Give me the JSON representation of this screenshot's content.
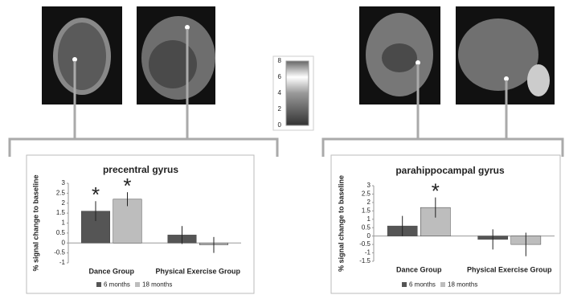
{
  "chart_data": [
    {
      "type": "bar",
      "title": "precentral gyrus",
      "y_label": "% signal change to baseline",
      "categories": [
        "Dance Group",
        "Physical Exercise Group"
      ],
      "series": [
        {
          "name": "6 months",
          "color": "#555555",
          "values": [
            1.6,
            0.4
          ],
          "errors": [
            0.5,
            0.45
          ],
          "significance": [
            "*",
            null
          ]
        },
        {
          "name": "18 months",
          "color": "#bdbdbd",
          "values": [
            2.2,
            -0.1
          ],
          "errors": [
            0.35,
            0.4
          ],
          "significance": [
            "*",
            null
          ]
        }
      ],
      "ylim": [
        -1,
        3
      ],
      "yticks": [
        -1,
        -0.5,
        0,
        0.5,
        1,
        1.5,
        2,
        2.5,
        3
      ]
    },
    {
      "type": "bar",
      "title": "parahippocampal gyrus",
      "y_label": "% signal change to baseline",
      "categories": [
        "Dance Group",
        "Physical Exercise Group"
      ],
      "series": [
        {
          "name": "6 months",
          "color": "#555555",
          "values": [
            0.6,
            -0.2
          ],
          "errors": [
            0.6,
            0.6
          ],
          "significance": [
            null,
            null
          ]
        },
        {
          "name": "18 months",
          "color": "#bdbdbd",
          "values": [
            1.7,
            -0.5
          ],
          "errors": [
            0.6,
            0.7
          ],
          "significance": [
            "*",
            null
          ]
        }
      ],
      "ylim": [
        -1.5,
        3
      ],
      "yticks": [
        -1.5,
        -1,
        -0.5,
        0,
        0.5,
        1,
        1.5,
        2,
        2.5,
        3
      ]
    }
  ],
  "colorbar": {
    "ticks": [
      0,
      2,
      4,
      6,
      8
    ],
    "lim": [
      0,
      8
    ]
  }
}
